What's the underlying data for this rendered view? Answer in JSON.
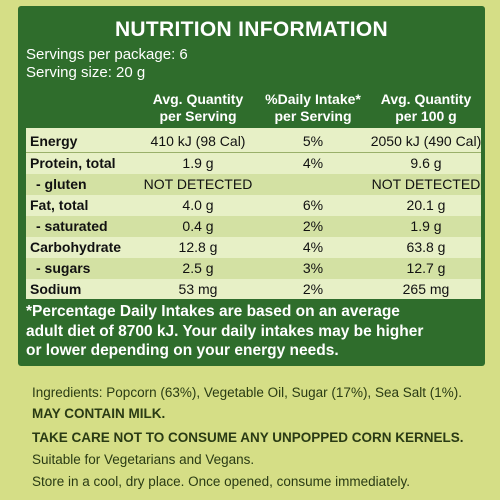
{
  "title": "NUTRITION INFORMATION",
  "servings_per_package": "Servings per package: 6",
  "serving_size": "Serving size: 20 g",
  "table": {
    "headers": [
      [
        "Avg. Quantity",
        "per Serving"
      ],
      [
        "%Daily Intake*",
        "per Serving"
      ],
      [
        "Avg. Quantity",
        "per 100 g"
      ]
    ],
    "rows": [
      {
        "label": "Energy",
        "per_serving": "410 kJ (98 Cal)",
        "daily": "5%",
        "per_100g": "2050 kJ (490 Cal)"
      },
      {
        "label": "Protein, total",
        "per_serving": "1.9 g",
        "daily": "4%",
        "per_100g": "9.6 g"
      },
      {
        "label": "- gluten",
        "per_serving": "NOT DETECTED",
        "daily": "",
        "per_100g": "NOT DETECTED"
      },
      {
        "label": "Fat, total",
        "per_serving": "4.0 g",
        "daily": "6%",
        "per_100g": "20.1 g"
      },
      {
        "label": "- saturated",
        "per_serving": "0.4 g",
        "daily": "2%",
        "per_100g": "1.9 g"
      },
      {
        "label": "Carbohydrate",
        "per_serving": "12.8 g",
        "daily": "4%",
        "per_100g": "63.8 g"
      },
      {
        "label": "- sugars",
        "per_serving": "2.5 g",
        "daily": "3%",
        "per_100g": "12.7 g"
      },
      {
        "label": "Sodium",
        "per_serving": "53 mg",
        "daily": "2%",
        "per_100g": "265 mg"
      }
    ]
  },
  "footnote": [
    "*Percentage Daily Intakes are based on an average",
    "adult diet of 8700 kJ. Your daily intakes may be higher",
    "or lower depending on your energy needs."
  ],
  "ingredients": "Ingredients: Popcorn (63%), Vegetable Oil, Sugar (17%), Sea Salt (1%).",
  "allergen": "MAY CONTAIN MILK.",
  "warning": "TAKE CARE NOT TO CONSUME ANY UNPOPPED CORN KERNELS.",
  "suitability": "Suitable for Vegetarians and Vegans.",
  "storage": "Store in a cool, dry place. Once opened, consume immediately.",
  "colors": {
    "panel_green": "#2f6d2c",
    "label_background": "#d5de86",
    "table_light": "#e7f0c6",
    "table_alt": "#d3e1a3"
  }
}
